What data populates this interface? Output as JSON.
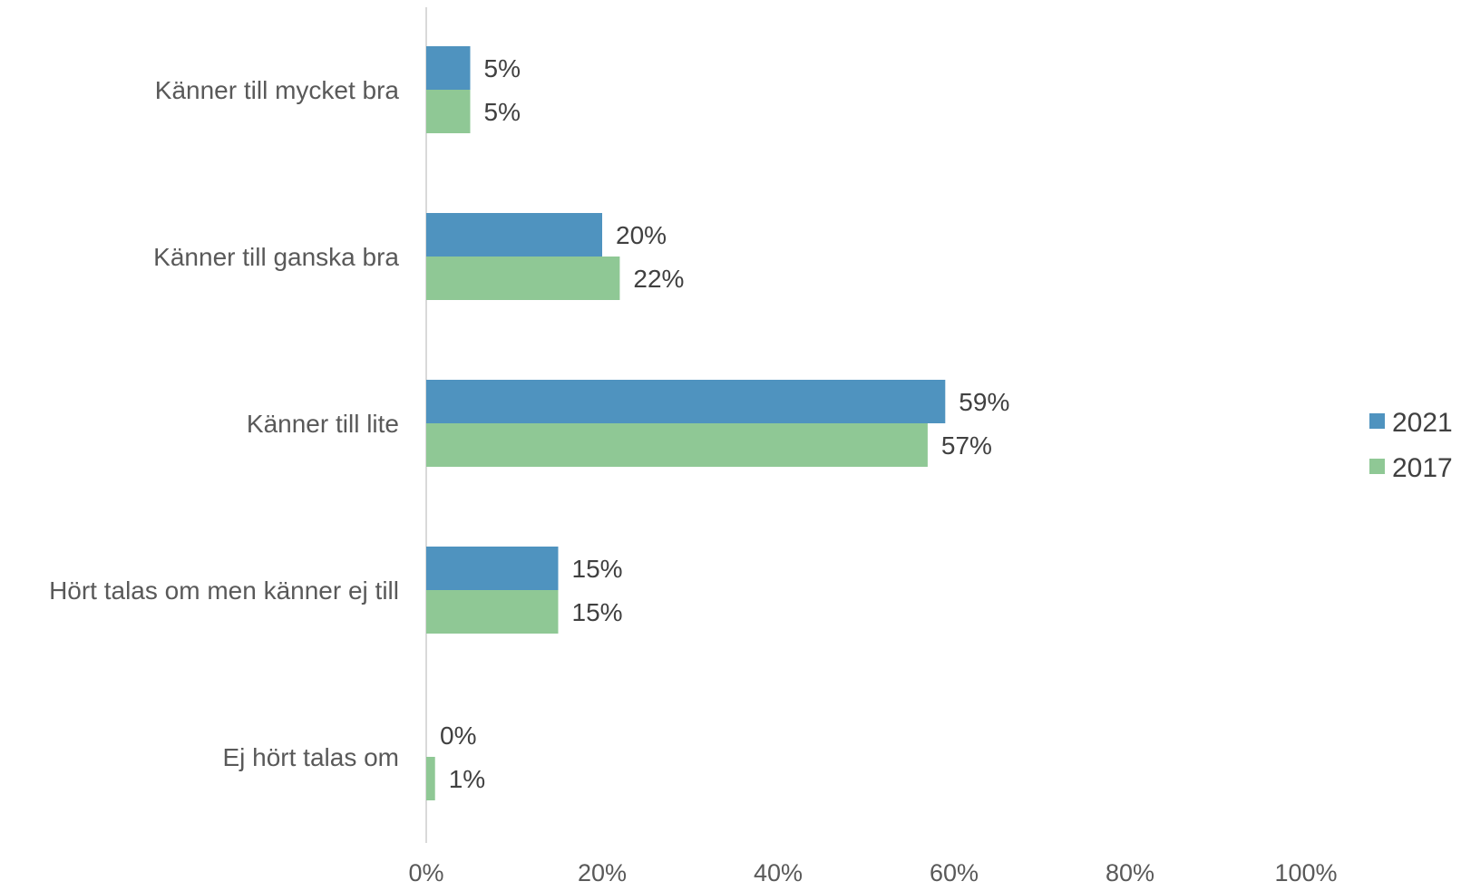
{
  "chart_data": {
    "type": "bar",
    "orientation": "horizontal",
    "categories": [
      "Känner till mycket bra",
      "Känner till ganska bra",
      "Känner till lite",
      "Hört talas om men känner ej till",
      "Ej hört talas om"
    ],
    "series": [
      {
        "name": "2021",
        "color": "#4F93BF",
        "values": [
          5,
          20,
          59,
          15,
          0
        ],
        "labels": [
          "5%",
          "20%",
          "59%",
          "15%",
          "0%"
        ]
      },
      {
        "name": "2017",
        "color": "#8FC895",
        "values": [
          5,
          22,
          57,
          15,
          1
        ],
        "labels": [
          "5%",
          "22%",
          "57%",
          "15%",
          "1%"
        ]
      }
    ],
    "xlim": [
      0,
      100
    ],
    "ticks": [
      0,
      20,
      40,
      60,
      80,
      100
    ],
    "tick_labels": [
      "0%",
      "20%",
      "40%",
      "60%",
      "80%",
      "100%"
    ],
    "title": "",
    "xlabel": "",
    "ylabel": "",
    "grid": false,
    "legend_position": "right"
  }
}
